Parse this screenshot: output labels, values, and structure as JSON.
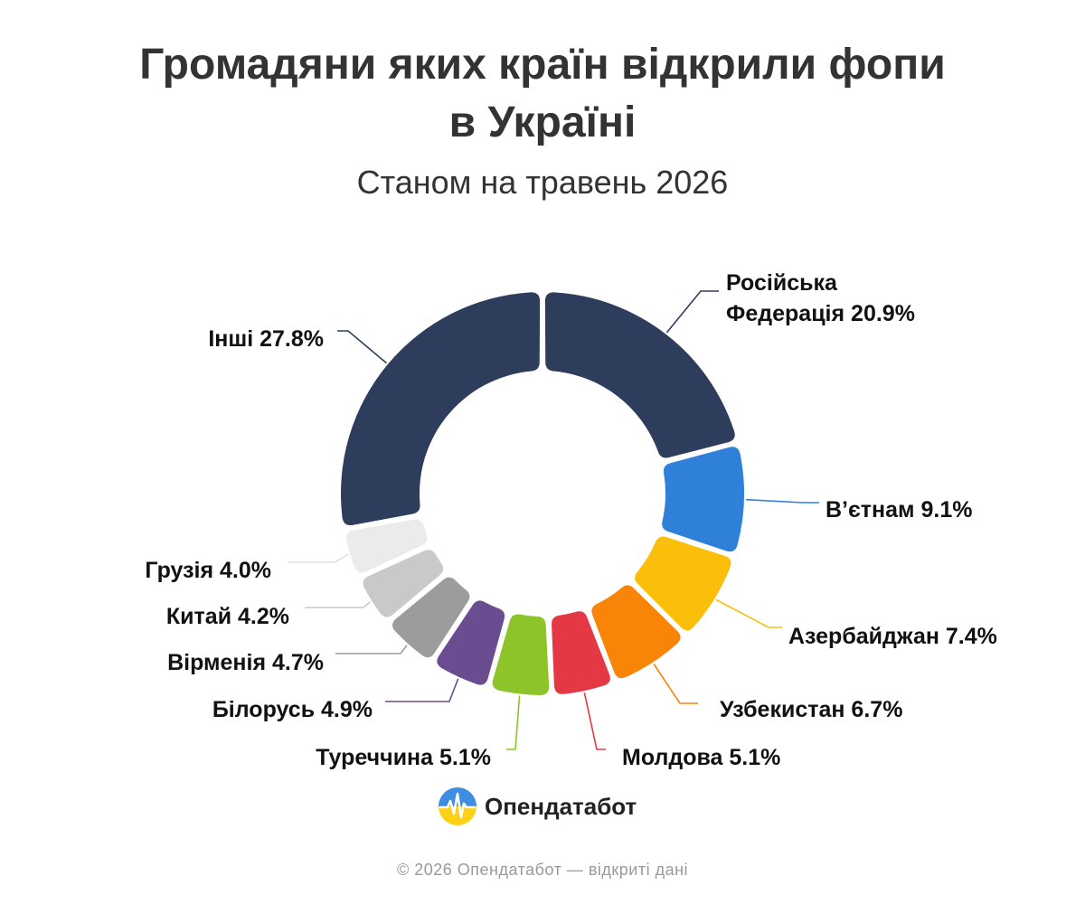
{
  "header": {
    "title_line1": "Громадяни яких країн відкрили фопи",
    "title_line2": "в Україні",
    "subtitle": "Станом на травень 2026"
  },
  "chart_data": {
    "type": "pie",
    "variant": "donut",
    "title": "Громадяни яких країн відкрили фопи в Україні",
    "subtitle": "Станом на травень 2026",
    "unit": "%",
    "start": "12 o'clock",
    "direction": "clockwise",
    "slices": [
      {
        "name": "Російська Федерація",
        "value": 20.9,
        "label_lines": [
          "Російська",
          "Федерація 20.9%"
        ],
        "color": "#2e3d5c",
        "line_color": "#2e3d5c"
      },
      {
        "name": "В’єтнам",
        "value": 9.1,
        "label_lines": [
          "В’єтнам 9.1%"
        ],
        "color": "#2f80d8",
        "line_color": "#2f80d8"
      },
      {
        "name": "Азербайджан",
        "value": 7.4,
        "label_lines": [
          "Азербайджан 7.4%"
        ],
        "color": "#fbbf0b",
        "line_color": "#fbbf0b"
      },
      {
        "name": "Узбекистан",
        "value": 6.7,
        "label_lines": [
          "Узбекистан 6.7%"
        ],
        "color": "#f98508",
        "line_color": "#f98508"
      },
      {
        "name": "Молдова",
        "value": 5.1,
        "label_lines": [
          "Молдова 5.1%"
        ],
        "color": "#e53845",
        "line_color": "#e53845"
      },
      {
        "name": "Туреччина",
        "value": 5.1,
        "label_lines": [
          "Туреччина 5.1%"
        ],
        "color": "#8cc42a",
        "line_color": "#8cc42a"
      },
      {
        "name": "Білорусь",
        "value": 4.9,
        "label_lines": [
          "Білорусь 4.9%"
        ],
        "color": "#6a4c91",
        "line_color": "#6a4c91"
      },
      {
        "name": "Вірменія",
        "value": 4.7,
        "label_lines": [
          "Вірменія 4.7%"
        ],
        "color": "#9c9c9c",
        "line_color": "#9c9c9c"
      },
      {
        "name": "Китай",
        "value": 4.2,
        "label_lines": [
          "Китай 4.2%"
        ],
        "color": "#c9c9c9",
        "line_color": "#c9c9c9"
      },
      {
        "name": "Грузія",
        "value": 4.0,
        "label_lines": [
          "Грузія 4.0%"
        ],
        "color": "#ebebeb",
        "line_color": "#e0e0e0"
      },
      {
        "name": "Інші",
        "value": 27.8,
        "label_lines": [
          "Інші 27.8%"
        ],
        "color": "#2e3d5c",
        "line_color": "#2e3d5c"
      }
    ]
  },
  "branding": {
    "name": "Опендатабот",
    "footer": "© 2026 Опендатабот — відкриті дані"
  }
}
